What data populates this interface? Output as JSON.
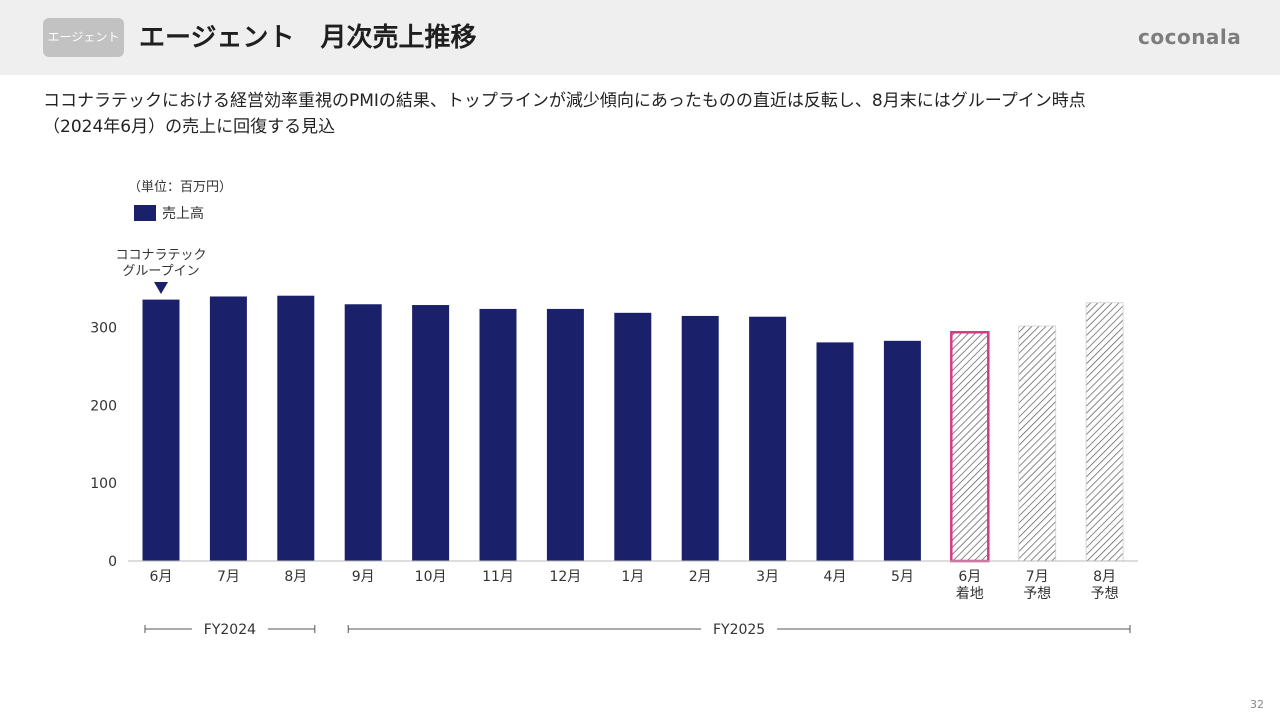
{
  "header": {
    "badge": "エージェント",
    "title": "エージェント　月次売上推移",
    "logo": "coconala"
  },
  "lead": {
    "line1": "ココナラテックにおける経営効率重視のPMIの結果、トップラインが減少傾向にあったものの直近は反転し、8月末にはグループイン時点",
    "line2": "（2024年6月）の売上に回復する見込"
  },
  "page_number": "32",
  "colors": {
    "bar": "#1a206a",
    "highlight": "#d6398a",
    "hatch": "#555555",
    "axis": "#bbbbbb"
  },
  "chart_data": {
    "type": "bar",
    "unit_label": "（単位：百万円）",
    "legend": [
      "売上高"
    ],
    "categories": [
      "6月",
      "7月",
      "8月",
      "9月",
      "10月",
      "11月",
      "12月",
      "1月",
      "2月",
      "3月",
      "4月",
      "5月",
      "6月\n着地",
      "7月\n予想",
      "8月\n予想"
    ],
    "series": [
      {
        "name": "売上高",
        "values": [
          336,
          340,
          341,
          330,
          329,
          324,
          324,
          319,
          315,
          314,
          281,
          283,
          294,
          302,
          332
        ],
        "styles": [
          "solid",
          "solid",
          "solid",
          "solid",
          "solid",
          "solid",
          "solid",
          "solid",
          "solid",
          "solid",
          "solid",
          "solid",
          "hatched-highlight",
          "hatched",
          "hatched"
        ]
      }
    ],
    "yticks": [
      0,
      100,
      200,
      300
    ],
    "ylim": [
      0,
      350
    ],
    "annotation": {
      "category_index": 0,
      "lines": [
        "ココナラテック",
        "グループイン"
      ]
    },
    "periods": [
      {
        "label": "FY2024",
        "start_index": 0,
        "end_index": 2
      },
      {
        "label": "FY2025",
        "start_index": 3,
        "end_index": 14
      }
    ]
  }
}
